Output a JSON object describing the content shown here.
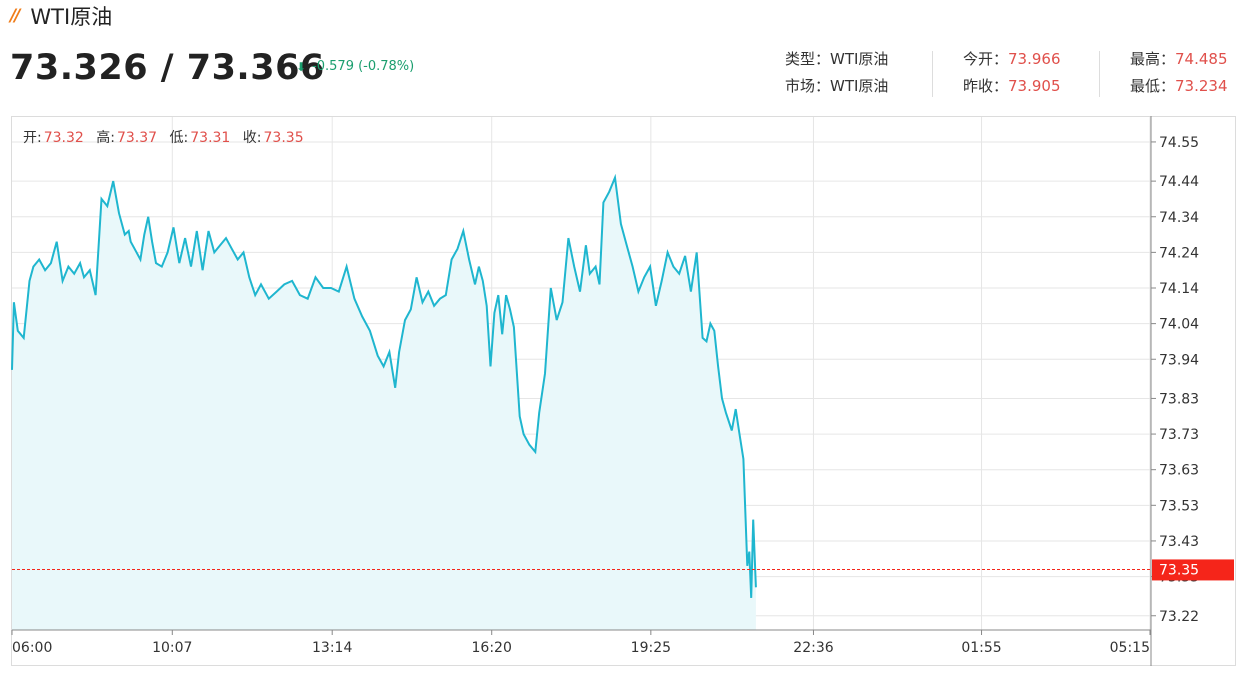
{
  "header": {
    "title_mark": "//",
    "title": "WTI原油",
    "bid_ask": "73.326 / 73.366",
    "change_text": "-0.579 (-0.78%)",
    "change_color": "#1a9e6e"
  },
  "stats": {
    "type_label": "类型：",
    "type_value": "WTI原油",
    "market_label": "市场：",
    "market_value": "WTI原油",
    "open_label": "今开：",
    "open_value": "73.966",
    "prev_close_label": "昨收：",
    "prev_close_value": "73.905",
    "high_label": "最高：",
    "high_value": "74.485",
    "low_label": "最低：",
    "low_value": "73.234"
  },
  "ohlc": {
    "open_label": "开:",
    "open": "73.32",
    "high_label": "高:",
    "high": "73.37",
    "low_label": "低:",
    "low": "73.31",
    "close_label": "收:",
    "close": "73.35"
  },
  "colors": {
    "line": "#1fb6cf",
    "area": "#e9f8fa",
    "up_down_red": "#e0504b",
    "current_price_tag": "#f5251a",
    "grid": "#e6e6e6"
  },
  "chart_data": {
    "type": "area",
    "x_tick_labels": [
      "06:00",
      "10:07",
      "13:14",
      "16:20",
      "19:25",
      "22:36",
      "01:55",
      "05:15"
    ],
    "y_tick_labels": [
      "74.55",
      "74.44",
      "74.34",
      "74.24",
      "74.14",
      "74.04",
      "73.94",
      "73.83",
      "73.73",
      "73.63",
      "73.53",
      "73.43",
      "73.33",
      "73.22"
    ],
    "ylim": [
      73.18,
      74.62
    ],
    "current_price": 73.35,
    "current_price_label": "73.35",
    "x_ticks_hours": [
      0,
      4.12,
      8.23,
      12.33,
      16.42,
      20.6,
      24.92,
      29.25
    ],
    "x_range_hours": [
      0,
      29.25
    ],
    "series": [
      {
        "x": [
          0,
          0.05,
          0.15,
          0.3,
          0.45,
          0.55,
          0.7,
          0.85,
          1.0,
          1.15,
          1.3,
          1.45,
          1.6,
          1.75,
          1.85,
          2.0,
          2.15,
          2.3,
          2.45,
          2.6,
          2.75,
          2.9,
          3.0,
          3.05,
          3.15,
          3.3,
          3.4,
          3.5,
          3.6,
          3.7,
          3.85,
          4.0,
          4.15,
          4.3,
          4.45,
          4.6,
          4.75,
          4.9,
          5.05,
          5.2,
          5.35,
          5.5,
          5.65,
          5.8,
          5.95,
          6.1,
          6.25,
          6.4,
          6.6,
          6.8,
          7.0,
          7.2,
          7.4,
          7.6,
          7.8,
          8.0,
          8.2,
          8.4,
          8.6,
          8.8,
          9.0,
          9.2,
          9.4,
          9.55,
          9.7,
          9.85,
          9.95,
          10.1,
          10.25,
          10.4,
          10.55,
          10.7,
          10.85,
          11.0,
          11.15,
          11.3,
          11.45,
          11.6,
          11.75,
          11.9,
          12.0,
          12.1,
          12.2,
          12.3,
          12.4,
          12.5,
          12.6,
          12.7,
          12.8,
          12.9,
          13.05,
          13.15,
          13.3,
          13.45,
          13.55,
          13.7,
          13.85,
          14.0,
          14.15,
          14.3,
          14.45,
          14.6,
          14.75,
          14.85,
          15.0,
          15.1,
          15.2,
          15.35,
          15.5,
          15.65,
          15.8,
          15.95,
          16.1,
          16.25,
          16.4,
          16.55,
          16.7,
          16.85,
          17.0,
          17.15,
          17.3,
          17.45,
          17.6,
          17.75,
          17.85,
          17.95,
          18.05,
          18.15,
          18.25,
          18.35,
          18.5,
          18.6,
          18.7,
          18.8,
          18.9,
          18.95,
          19.0,
          19.05,
          19.12
        ],
        "y": [
          73.91,
          74.1,
          74.02,
          74.0,
          74.16,
          74.2,
          74.22,
          74.19,
          74.21,
          74.27,
          74.16,
          74.2,
          74.18,
          74.21,
          74.17,
          74.19,
          74.12,
          74.39,
          74.37,
          74.44,
          74.35,
          74.29,
          74.3,
          74.27,
          74.25,
          74.22,
          74.29,
          74.34,
          74.27,
          74.21,
          74.2,
          74.24,
          74.31,
          74.21,
          74.28,
          74.2,
          74.3,
          74.19,
          74.3,
          74.24,
          74.26,
          74.28,
          74.25,
          74.22,
          74.24,
          74.17,
          74.12,
          74.15,
          74.11,
          74.13,
          74.15,
          74.16,
          74.12,
          74.11,
          74.17,
          74.14,
          74.14,
          74.13,
          74.2,
          74.11,
          74.06,
          74.02,
          73.95,
          73.92,
          73.96,
          73.86,
          73.96,
          74.05,
          74.08,
          74.17,
          74.1,
          74.13,
          74.09,
          74.11,
          74.12,
          74.22,
          74.25,
          74.3,
          74.22,
          74.15,
          74.2,
          74.16,
          74.09,
          73.92,
          74.07,
          74.12,
          74.01,
          74.12,
          74.08,
          74.03,
          73.78,
          73.73,
          73.7,
          73.68,
          73.79,
          73.9,
          74.14,
          74.05,
          74.1,
          74.28,
          74.2,
          74.13,
          74.26,
          74.18,
          74.2,
          74.15,
          74.38,
          74.41,
          74.45,
          74.32,
          74.26,
          74.2,
          74.13,
          74.17,
          74.2,
          74.09,
          74.16,
          74.24,
          74.2,
          74.18,
          74.23,
          74.13,
          74.24,
          74.0,
          73.99,
          74.04,
          74.02,
          73.92,
          73.83,
          73.79,
          73.74,
          73.8,
          73.73,
          73.66,
          73.36,
          73.4,
          73.27,
          73.49,
          73.3
        ]
      }
    ]
  }
}
